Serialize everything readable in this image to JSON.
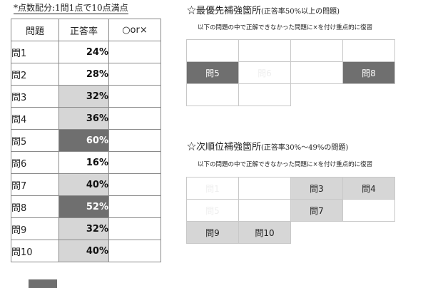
{
  "note": "*点数配分:1問1点で10点満点",
  "table": {
    "headers": [
      "問題",
      "正答率",
      "○or×"
    ],
    "rows": [
      {
        "label": "問1",
        "rate": "24%",
        "shade": "white"
      },
      {
        "label": "問2",
        "rate": "28%",
        "shade": "white"
      },
      {
        "label": "問3",
        "rate": "32%",
        "shade": "light"
      },
      {
        "label": "問4",
        "rate": "36%",
        "shade": "light"
      },
      {
        "label": "問5",
        "rate": "60%",
        "shade": "dark"
      },
      {
        "label": "問6",
        "rate": "16%",
        "shade": "white"
      },
      {
        "label": "問7",
        "rate": "40%",
        "shade": "light"
      },
      {
        "label": "問8",
        "rate": "52%",
        "shade": "dark"
      },
      {
        "label": "問9",
        "rate": "32%",
        "shade": "light"
      },
      {
        "label": "問10",
        "rate": "40%",
        "shade": "light"
      }
    ]
  },
  "priority": {
    "title": "☆最優先補強箇所",
    "subtitle": "(正答率50%以上の問題)",
    "instruction": "以下の問題の中で正解できなかった問題に×を付け重点的に復習",
    "grid": [
      [
        {
          "text": "",
          "style": "white"
        },
        {
          "text": "",
          "style": "white"
        },
        {
          "text": "",
          "style": "white"
        },
        {
          "text": "",
          "style": "white"
        }
      ],
      [
        {
          "text": "問5",
          "style": "dark"
        },
        {
          "text": "問6",
          "style": "faint"
        },
        {
          "text": "",
          "style": "white"
        },
        {
          "text": "問8",
          "style": "dark"
        }
      ],
      [
        {
          "text": "",
          "style": "white"
        },
        {
          "text": "",
          "style": "white"
        }
      ]
    ]
  },
  "secondary": {
    "title": "☆次順位補強箇所",
    "subtitle": "(正答率30%〜49%の問題)",
    "instruction": "以下の問題の中で正解できなかった問題に×を付け重点的に復習",
    "grid": [
      [
        {
          "text": "問1",
          "style": "faint"
        },
        {
          "text": "",
          "style": "white"
        },
        {
          "text": "問3",
          "style": "light"
        },
        {
          "text": "問4",
          "style": "light"
        }
      ],
      [
        {
          "text": "問5",
          "style": "faint"
        },
        {
          "text": "",
          "style": "white"
        },
        {
          "text": "問7",
          "style": "light"
        },
        {
          "text": "",
          "style": "white"
        }
      ],
      [
        {
          "text": "問9",
          "style": "light"
        },
        {
          "text": "問10",
          "style": "light"
        }
      ]
    ]
  },
  "colors": {
    "dark": "#6f6f6f",
    "light": "#d6d6d6",
    "border": "#8a8a8a"
  }
}
